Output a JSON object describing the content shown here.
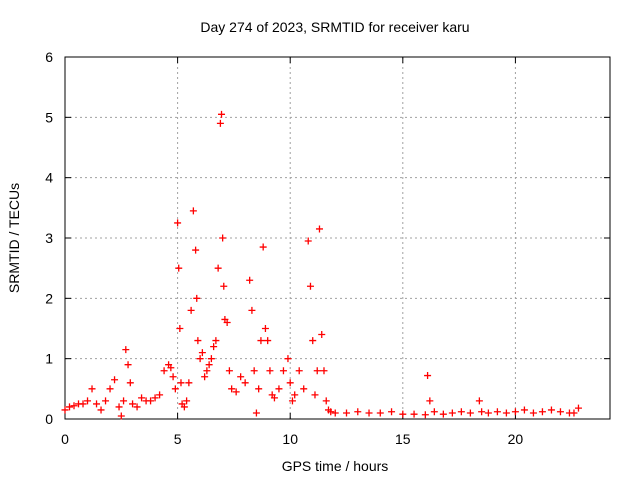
{
  "chart_data": {
    "type": "scatter",
    "title": "Day 274 of 2023, SRMTID for receiver karu",
    "xlabel": "GPS time / hours",
    "ylabel": "SRMTID / TECUs",
    "xlim": [
      0,
      24.2
    ],
    "ylim": [
      0,
      6
    ],
    "xticks": [
      0,
      5,
      10,
      15,
      20
    ],
    "yticks": [
      0,
      1,
      2,
      3,
      4,
      5,
      6
    ],
    "grid": true,
    "marker": "+",
    "color": "#ff0000",
    "series": [
      {
        "name": "SRMTID",
        "x": [
          0.0,
          0.2,
          0.4,
          0.6,
          0.8,
          1.0,
          1.2,
          1.4,
          1.6,
          1.8,
          2.0,
          2.2,
          2.4,
          2.5,
          2.6,
          2.7,
          2.8,
          2.9,
          3.0,
          3.2,
          3.4,
          3.6,
          3.8,
          4.0,
          4.2,
          4.4,
          4.6,
          4.7,
          4.8,
          4.9,
          5.0,
          5.05,
          5.1,
          5.15,
          5.2,
          5.3,
          5.4,
          5.5,
          5.6,
          5.7,
          5.8,
          5.85,
          5.9,
          6.0,
          6.1,
          6.2,
          6.3,
          6.4,
          6.5,
          6.6,
          6.7,
          6.8,
          6.9,
          6.95,
          7.0,
          7.05,
          7.1,
          7.2,
          7.3,
          7.4,
          7.6,
          7.8,
          8.0,
          8.2,
          8.3,
          8.4,
          8.5,
          8.6,
          8.7,
          8.8,
          8.9,
          9.0,
          9.1,
          9.2,
          9.3,
          9.5,
          9.7,
          9.9,
          10.0,
          10.1,
          10.2,
          10.4,
          10.6,
          10.8,
          10.9,
          11.0,
          11.1,
          11.2,
          11.3,
          11.4,
          11.5,
          11.6,
          11.7,
          11.8,
          12.0,
          12.5,
          13.0,
          13.5,
          14.0,
          14.5,
          15.0,
          15.5,
          16.0,
          16.1,
          16.2,
          16.4,
          16.8,
          17.2,
          17.6,
          18.0,
          18.4,
          18.5,
          18.8,
          19.2,
          19.6,
          20.0,
          20.4,
          20.8,
          21.2,
          21.6,
          22.0,
          22.4,
          22.6,
          22.8
        ],
        "y": [
          0.15,
          0.2,
          0.22,
          0.25,
          0.25,
          0.3,
          0.5,
          0.25,
          0.15,
          0.3,
          0.5,
          0.65,
          0.2,
          0.05,
          0.3,
          1.15,
          0.9,
          0.6,
          0.25,
          0.2,
          0.35,
          0.3,
          0.3,
          0.35,
          0.4,
          0.8,
          0.9,
          0.85,
          0.7,
          0.5,
          3.25,
          2.5,
          1.5,
          0.6,
          0.25,
          0.2,
          0.3,
          0.6,
          1.8,
          3.45,
          2.8,
          2.0,
          1.3,
          1.0,
          1.1,
          0.7,
          0.8,
          0.9,
          1.0,
          1.2,
          1.3,
          2.5,
          4.9,
          5.05,
          3.0,
          2.2,
          1.65,
          1.6,
          0.8,
          0.5,
          0.45,
          0.7,
          0.6,
          2.3,
          1.8,
          0.8,
          0.1,
          0.5,
          1.3,
          2.85,
          1.5,
          1.3,
          0.8,
          0.4,
          0.35,
          0.5,
          0.8,
          1.0,
          0.6,
          0.3,
          0.4,
          0.8,
          0.5,
          2.95,
          2.2,
          1.3,
          0.4,
          0.8,
          3.15,
          1.4,
          0.8,
          0.3,
          0.15,
          0.12,
          0.1,
          0.1,
          0.12,
          0.1,
          0.1,
          0.12,
          0.08,
          0.08,
          0.07,
          0.72,
          0.3,
          0.12,
          0.08,
          0.1,
          0.12,
          0.1,
          0.3,
          0.12,
          0.1,
          0.12,
          0.1,
          0.12,
          0.15,
          0.1,
          0.12,
          0.15,
          0.12,
          0.1,
          0.1,
          0.18
        ]
      }
    ]
  }
}
